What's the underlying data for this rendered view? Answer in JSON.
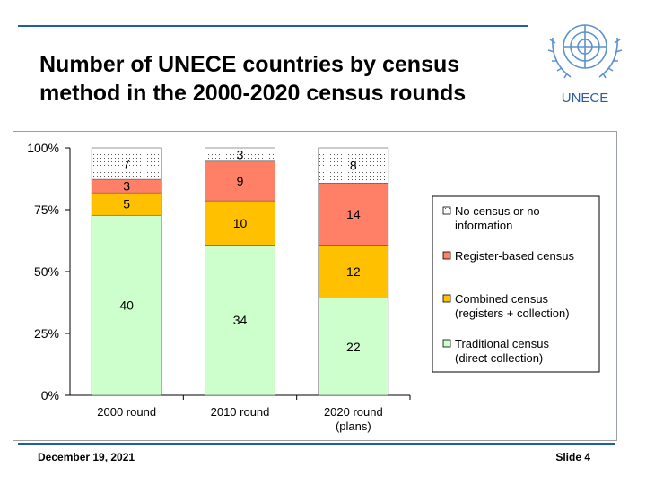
{
  "slide": {
    "title_line1": "Number of UNECE countries by census",
    "title_line2": "method in the 2000-2020 census rounds",
    "logo_text": "UNECE",
    "date": "December 19, 2021",
    "slide_label": "Slide 4"
  },
  "colors": {
    "accent": "#1f5fa0",
    "traditional": "#ccffcc",
    "combined": "#ffc000",
    "register": "#ff8066",
    "nocensus": "#ffffff",
    "logo": "#5b92cf"
  },
  "chart_data": {
    "type": "bar",
    "stacked": true,
    "percent": true,
    "categories": [
      [
        "2000 round"
      ],
      [
        "2010 round"
      ],
      [
        "2020 round",
        "(plans)"
      ]
    ],
    "series": [
      {
        "name": "Traditional census (direct collection)",
        "legend_lines": [
          "Traditional census",
          "(direct collection)"
        ],
        "values": [
          40,
          34,
          22
        ],
        "fill": "#ccffcc"
      },
      {
        "name": "Combined census (registers + collection)",
        "legend_lines": [
          "Combined census",
          "(registers + collection)"
        ],
        "values": [
          5,
          10,
          12
        ],
        "fill": "#ffc000"
      },
      {
        "name": "Register-based census",
        "legend_lines": [
          "Register-based census"
        ],
        "values": [
          3,
          9,
          14
        ],
        "fill": "#ff8066"
      },
      {
        "name": "No census or no information",
        "legend_lines": [
          "No census or no",
          "information"
        ],
        "values": [
          7,
          3,
          8
        ],
        "fill": "#ffffff",
        "pattern": "dots"
      }
    ],
    "y_ticks": [
      "0%",
      "25%",
      "50%",
      "75%",
      "100%"
    ],
    "ylim": [
      0,
      100
    ],
    "grid": false,
    "legend_position": "right"
  }
}
